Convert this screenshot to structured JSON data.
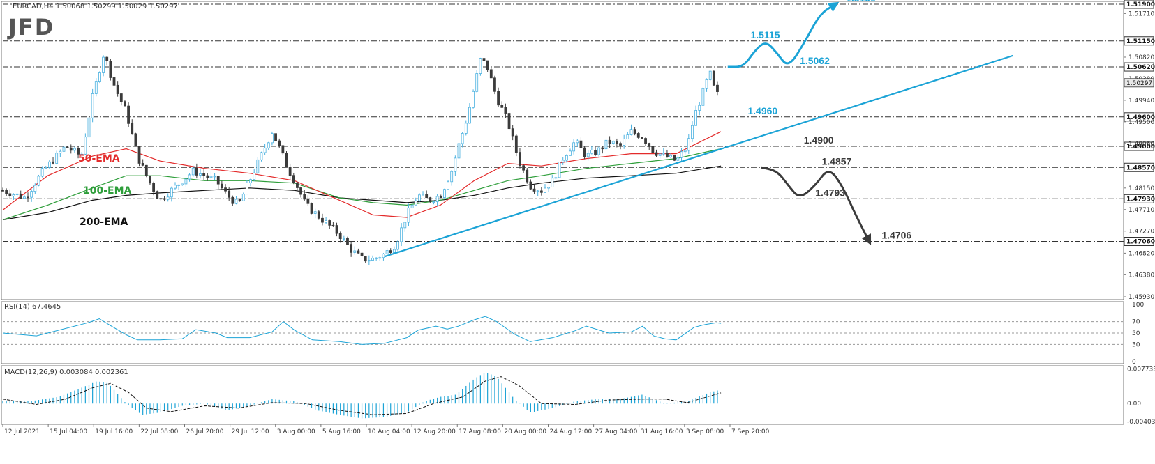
{
  "header": {
    "symbol_text": "EURCAD,H4  1.50068 1.50299 1.50029 1.50297",
    "logo": "JFD"
  },
  "colors": {
    "bull": "#4ab1e0",
    "bear": "#3b3b3b",
    "trend": "#1ba3d6",
    "ema50": "#e32b2b",
    "ema100": "#2e9e3a",
    "ema200": "#111111",
    "scenario_up": "#1ba3d6",
    "scenario_down": "#3b3b3b",
    "oscillator": "#1ba3d6"
  },
  "chart_data": {
    "type": "candlestick",
    "title": "EURCAD,H4",
    "price_axis": {
      "ylim": [
        1.4593,
        1.519
      ],
      "ticks": [
        "1.51710",
        "1.50820",
        "1.50380",
        "1.49940",
        "1.49500",
        "1.49060",
        "1.48150",
        "1.47710",
        "1.47270",
        "1.46820",
        "1.46380",
        "1.45930"
      ],
      "current_price": "1.50297"
    },
    "levels": [
      {
        "value": "1.51900",
        "label": "1.5190",
        "side": "upper"
      },
      {
        "value": "1.51150",
        "label": "1.5115",
        "side": "upper"
      },
      {
        "value": "1.50620",
        "label": "1.5062",
        "side": "upper"
      },
      {
        "value": "1.49600",
        "label": "1.4960",
        "side": "upper"
      },
      {
        "value": "1.49000",
        "label": "1.4900",
        "side": "lower"
      },
      {
        "value": "1.48570",
        "label": "1.4857",
        "side": "lower"
      },
      {
        "value": "1.47930",
        "label": "1.4793",
        "side": "lower"
      },
      {
        "value": "1.47060",
        "label": "1.4706",
        "side": "lower"
      }
    ],
    "x_ticks": [
      "12 Jul 2021",
      "15 Jul 04:00",
      "19 Jul 16:00",
      "22 Jul 08:00",
      "26 Jul 20:00",
      "29 Jul 12:00",
      "3 Aug 00:00",
      "5 Aug 16:00",
      "10 Aug 04:00",
      "12 Aug 20:00",
      "17 Aug 08:00",
      "20 Aug 00:00",
      "24 Aug 12:00",
      "27 Aug 04:00",
      "31 Aug 16:00",
      "3 Sep 08:00",
      "7 Sep 20:00"
    ],
    "close_path": [
      [
        0,
        1.481
      ],
      [
        10,
        1.4795
      ],
      [
        18,
        1.485
      ],
      [
        28,
        1.49
      ],
      [
        35,
        1.488
      ],
      [
        40,
        1.5
      ],
      [
        45,
        1.509
      ],
      [
        50,
        1.502
      ],
      [
        55,
        1.497
      ],
      [
        60,
        1.488
      ],
      [
        65,
        1.483
      ],
      [
        70,
        1.479
      ],
      [
        75,
        1.481
      ],
      [
        80,
        1.483
      ],
      [
        85,
        1.485
      ],
      [
        90,
        1.484
      ],
      [
        95,
        1.483
      ],
      [
        100,
        1.48
      ],
      [
        105,
        1.478
      ],
      [
        110,
        1.483
      ],
      [
        115,
        1.488
      ],
      [
        120,
        1.493
      ],
      [
        123,
        1.49
      ],
      [
        127,
        1.4855
      ],
      [
        130,
        1.483
      ],
      [
        135,
        1.478
      ],
      [
        140,
        1.476
      ],
      [
        145,
        1.474
      ],
      [
        150,
        1.472
      ],
      [
        155,
        1.469
      ],
      [
        160,
        1.467
      ],
      [
        165,
        1.467
      ],
      [
        170,
        1.468
      ],
      [
        175,
        1.47
      ],
      [
        180,
        1.476
      ],
      [
        185,
        1.48
      ],
      [
        190,
        1.479
      ],
      [
        195,
        1.48
      ],
      [
        200,
        1.485
      ],
      [
        203,
        1.49
      ],
      [
        207,
        1.496
      ],
      [
        210,
        1.502
      ],
      [
        213,
        1.508
      ],
      [
        216,
        1.506
      ],
      [
        220,
        1.5
      ],
      [
        225,
        1.495
      ],
      [
        230,
        1.487
      ],
      [
        235,
        1.482
      ],
      [
        240,
        1.481
      ],
      [
        245,
        1.483
      ],
      [
        250,
        1.488
      ],
      [
        255,
        1.491
      ],
      [
        260,
        1.488
      ],
      [
        265,
        1.489
      ],
      [
        270,
        1.491
      ],
      [
        275,
        1.49
      ],
      [
        280,
        1.493
      ],
      [
        285,
        1.492
      ],
      [
        290,
        1.489
      ],
      [
        295,
        1.488
      ],
      [
        300,
        1.487
      ],
      [
        305,
        1.49
      ],
      [
        308,
        1.496
      ],
      [
        312,
        1.501
      ],
      [
        315,
        1.505
      ],
      [
        318,
        1.5
      ],
      [
        320,
        1.503
      ]
    ],
    "ema_50": [
      [
        0,
        1.477
      ],
      [
        20,
        1.484
      ],
      [
        40,
        1.488
      ],
      [
        55,
        1.4895
      ],
      [
        70,
        1.487
      ],
      [
        90,
        1.4855
      ],
      [
        110,
        1.4845
      ],
      [
        130,
        1.483
      ],
      [
        150,
        1.479
      ],
      [
        165,
        1.476
      ],
      [
        180,
        1.4755
      ],
      [
        195,
        1.478
      ],
      [
        210,
        1.483
      ],
      [
        225,
        1.4865
      ],
      [
        240,
        1.486
      ],
      [
        260,
        1.4875
      ],
      [
        280,
        1.4885
      ],
      [
        300,
        1.4885
      ],
      [
        320,
        1.493
      ]
    ],
    "ema_100": [
      [
        0,
        1.475
      ],
      [
        20,
        1.478
      ],
      [
        40,
        1.4815
      ],
      [
        55,
        1.484
      ],
      [
        70,
        1.484
      ],
      [
        90,
        1.483
      ],
      [
        110,
        1.483
      ],
      [
        130,
        1.4825
      ],
      [
        150,
        1.4795
      ],
      [
        165,
        1.4785
      ],
      [
        180,
        1.478
      ],
      [
        195,
        1.479
      ],
      [
        210,
        1.481
      ],
      [
        225,
        1.483
      ],
      [
        240,
        1.484
      ],
      [
        260,
        1.4855
      ],
      [
        280,
        1.4865
      ],
      [
        300,
        1.4875
      ],
      [
        320,
        1.4895
      ]
    ],
    "ema_200": [
      [
        0,
        1.475
      ],
      [
        20,
        1.4765
      ],
      [
        40,
        1.479
      ],
      [
        55,
        1.48
      ],
      [
        70,
        1.4805
      ],
      [
        90,
        1.481
      ],
      [
        110,
        1.4815
      ],
      [
        130,
        1.481
      ],
      [
        150,
        1.4795
      ],
      [
        165,
        1.479
      ],
      [
        180,
        1.4785
      ],
      [
        195,
        1.479
      ],
      [
        210,
        1.48
      ],
      [
        225,
        1.4815
      ],
      [
        240,
        1.4825
      ],
      [
        260,
        1.4835
      ],
      [
        280,
        1.484
      ],
      [
        300,
        1.4845
      ],
      [
        320,
        1.486
      ]
    ],
    "trendline": [
      [
        170,
        1.4675
      ],
      [
        450,
        1.5085
      ]
    ],
    "scenario_up_path": [
      [
        323,
        1.5062
      ],
      [
        330,
        1.5062
      ],
      [
        335,
        1.5095
      ],
      [
        340,
        1.5115
      ],
      [
        345,
        1.509
      ],
      [
        350,
        1.506
      ],
      [
        357,
        1.511
      ],
      [
        364,
        1.517
      ],
      [
        371,
        1.519
      ]
    ],
    "scenario_down_path": [
      [
        338,
        1.4857
      ],
      [
        345,
        1.485
      ],
      [
        350,
        1.482
      ],
      [
        355,
        1.4793
      ],
      [
        362,
        1.482
      ],
      [
        368,
        1.4857
      ],
      [
        374,
        1.482
      ],
      [
        380,
        1.476
      ],
      [
        386,
        1.4706
      ]
    ],
    "annotations": [
      "50-EMA",
      "100-EMA",
      "200-EMA"
    ],
    "x_range": [
      0,
      500
    ],
    "rsi": {
      "label": "RSI(14) 67.4645",
      "ylim": [
        0,
        100
      ],
      "ticks": [
        "100",
        "70",
        "50",
        "30",
        "0"
      ],
      "values": [
        [
          0,
          50
        ],
        [
          15,
          45
        ],
        [
          25,
          55
        ],
        [
          38,
          68
        ],
        [
          43,
          75
        ],
        [
          48,
          63
        ],
        [
          55,
          47
        ],
        [
          60,
          38
        ],
        [
          70,
          38
        ],
        [
          80,
          40
        ],
        [
          86,
          56
        ],
        [
          95,
          50
        ],
        [
          100,
          42
        ],
        [
          110,
          42
        ],
        [
          120,
          52
        ],
        [
          125,
          70
        ],
        [
          130,
          55
        ],
        [
          138,
          38
        ],
        [
          150,
          35
        ],
        [
          160,
          30
        ],
        [
          170,
          32
        ],
        [
          180,
          42
        ],
        [
          185,
          55
        ],
        [
          193,
          62
        ],
        [
          198,
          57
        ],
        [
          203,
          62
        ],
        [
          210,
          73
        ],
        [
          215,
          79
        ],
        [
          220,
          70
        ],
        [
          228,
          48
        ],
        [
          235,
          35
        ],
        [
          245,
          42
        ],
        [
          255,
          54
        ],
        [
          260,
          62
        ],
        [
          270,
          50
        ],
        [
          280,
          52
        ],
        [
          285,
          62
        ],
        [
          290,
          45
        ],
        [
          295,
          40
        ],
        [
          300,
          38
        ],
        [
          308,
          60
        ],
        [
          313,
          65
        ],
        [
          318,
          68
        ],
        [
          320,
          67
        ]
      ]
    },
    "macd": {
      "label": "MACD(12,26,9) 0.003084 0.002361",
      "ylim": [
        -0.004,
        0.0078
      ],
      "ticks": [
        "0.007733",
        "0.00",
        "-0.004038"
      ],
      "hist": [
        [
          0,
          0.0005
        ],
        [
          12,
          0.0005
        ],
        [
          25,
          0.0015
        ],
        [
          35,
          0.0035
        ],
        [
          42,
          0.005
        ],
        [
          47,
          0.0045
        ],
        [
          55,
          0.0
        ],
        [
          62,
          -0.0025
        ],
        [
          70,
          -0.002
        ],
        [
          80,
          -0.0005
        ],
        [
          90,
          0.0
        ],
        [
          100,
          -0.0015
        ],
        [
          110,
          -0.0005
        ],
        [
          120,
          0.001
        ],
        [
          130,
          0.0005
        ],
        [
          140,
          -0.0015
        ],
        [
          150,
          -0.0025
        ],
        [
          160,
          -0.0033
        ],
        [
          170,
          -0.003
        ],
        [
          180,
          -0.002
        ],
        [
          188,
          0.0005
        ],
        [
          195,
          0.0015
        ],
        [
          202,
          0.002
        ],
        [
          210,
          0.0055
        ],
        [
          215,
          0.007
        ],
        [
          220,
          0.006
        ],
        [
          228,
          0.001
        ],
        [
          235,
          -0.002
        ],
        [
          245,
          -0.001
        ],
        [
          255,
          0.0005
        ],
        [
          265,
          0.001
        ],
        [
          275,
          0.001
        ],
        [
          285,
          0.002
        ],
        [
          295,
          0.0
        ],
        [
          305,
          0.0005
        ],
        [
          315,
          0.0025
        ],
        [
          320,
          0.0031
        ]
      ],
      "signal": [
        [
          0,
          0.001
        ],
        [
          15,
          -0.0002
        ],
        [
          28,
          0.001
        ],
        [
          40,
          0.0035
        ],
        [
          48,
          0.0045
        ],
        [
          56,
          0.0025
        ],
        [
          64,
          -0.001
        ],
        [
          75,
          -0.0018
        ],
        [
          90,
          -0.0005
        ],
        [
          105,
          -0.001
        ],
        [
          120,
          0.0002
        ],
        [
          135,
          0.0
        ],
        [
          150,
          -0.0015
        ],
        [
          165,
          -0.0025
        ],
        [
          180,
          -0.0022
        ],
        [
          192,
          0.0
        ],
        [
          205,
          0.0015
        ],
        [
          215,
          0.005
        ],
        [
          222,
          0.006
        ],
        [
          230,
          0.004
        ],
        [
          240,
          0.0
        ],
        [
          255,
          -0.0002
        ],
        [
          270,
          0.0008
        ],
        [
          285,
          0.001
        ],
        [
          295,
          0.001
        ],
        [
          305,
          0.0002
        ],
        [
          320,
          0.0024
        ]
      ]
    }
  }
}
